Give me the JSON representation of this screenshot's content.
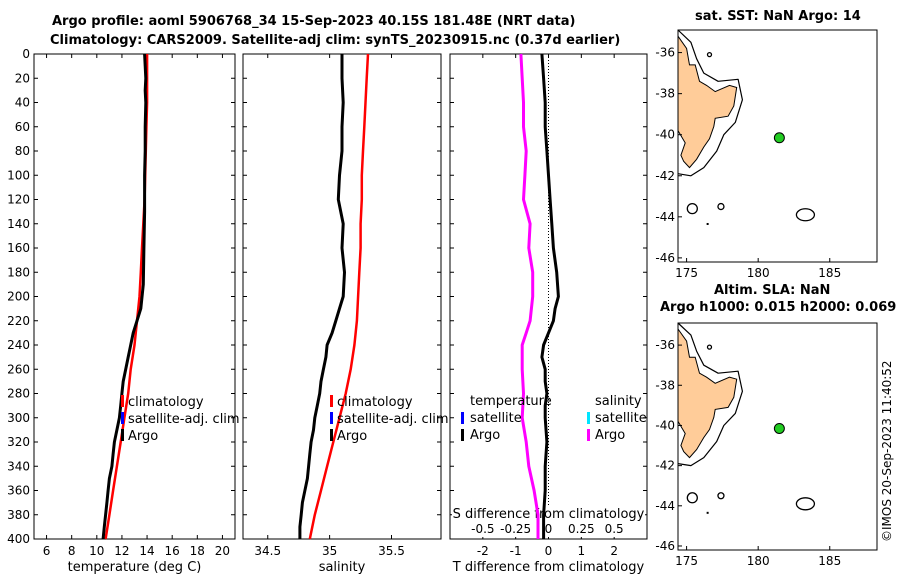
{
  "header": {
    "title_line1": "Argo profile: aoml 5906768_34 15-Sep-2023 40.15S 181.48E (NRT data)",
    "title_line2": "Climatology: CARS2009. Satellite-adj clim: synTS_20230915.nc (0.37d earlier)",
    "map1_title": "sat. SST: NaN Argo: 14",
    "map2_title_line1": "Altim. SLA: NaN",
    "map2_title_line2": "Argo h1000: 0.015 h2000: 0.069"
  },
  "footer": {
    "stamp": "©IMOS 20-Sep-2023 11:40:52"
  },
  "colors": {
    "argo": "#000000",
    "climatology": "#ff0000",
    "satellite": "#0000ff",
    "satellite_salinity": "#00e5ff",
    "salinity_diff": "#ff00ff",
    "land": "#ffcc99",
    "float_marker": "#22cc22"
  },
  "chart_data": [
    {
      "id": "temperature",
      "type": "line",
      "xlabel": "temperature (deg C)",
      "xlim": [
        5,
        21
      ],
      "xticks": [
        "6",
        "8",
        "10",
        "12",
        "14",
        "16",
        "18",
        "20"
      ],
      "ylim": [
        0,
        400
      ],
      "yticks": [
        "0",
        "20",
        "40",
        "60",
        "80",
        "100",
        "120",
        "140",
        "160",
        "180",
        "200",
        "220",
        "240",
        "260",
        "280",
        "300",
        "320",
        "340",
        "360",
        "380",
        "400"
      ],
      "series": [
        {
          "name": "Argo",
          "color": "#000000",
          "depth": [
            0,
            10,
            20,
            30,
            40,
            60,
            80,
            100,
            130,
            160,
            190,
            210,
            220,
            230,
            240,
            250,
            260,
            270,
            280,
            290,
            300,
            310,
            320,
            330,
            340,
            350,
            360,
            370,
            380,
            390,
            400
          ],
          "values": [
            13.8,
            13.85,
            13.9,
            13.85,
            13.9,
            13.85,
            13.85,
            13.8,
            13.8,
            13.75,
            13.7,
            13.5,
            13.2,
            12.9,
            12.7,
            12.5,
            12.3,
            12.1,
            12.0,
            11.9,
            11.8,
            11.6,
            11.4,
            11.3,
            11.2,
            11.0,
            10.9,
            10.8,
            10.7,
            10.6,
            10.5
          ]
        },
        {
          "name": "climatology",
          "color": "#ff0000",
          "depth": [
            0,
            20,
            40,
            60,
            80,
            100,
            120,
            140,
            160,
            180,
            200,
            220,
            240,
            260,
            280,
            300,
            320,
            340,
            360,
            380,
            400
          ],
          "values": [
            14.0,
            14.0,
            14.0,
            13.95,
            13.9,
            13.85,
            13.8,
            13.7,
            13.6,
            13.5,
            13.4,
            13.2,
            13.0,
            12.7,
            12.5,
            12.2,
            11.9,
            11.6,
            11.3,
            11.0,
            10.7
          ]
        },
        {
          "name": "satellite-adj. clim",
          "color": "#0000ff",
          "depth": [],
          "values": []
        }
      ],
      "legend": {
        "entries": [
          "climatology",
          "satellite-adj. clim",
          "Argo"
        ],
        "colors": [
          "#ff0000",
          "#0000ff",
          "#000000"
        ],
        "placement": "lower-middle"
      }
    },
    {
      "id": "salinity",
      "type": "line",
      "xlabel": "salinity",
      "xlim": [
        34.3,
        35.9
      ],
      "xticks": [
        "34.5",
        "35",
        "35.5"
      ],
      "ylim": [
        0,
        400
      ],
      "series": [
        {
          "name": "Argo",
          "color": "#000000",
          "depth": [
            0,
            20,
            40,
            60,
            80,
            100,
            120,
            140,
            160,
            180,
            200,
            210,
            220,
            230,
            240,
            250,
            260,
            270,
            280,
            290,
            300,
            310,
            320,
            330,
            340,
            350,
            360,
            370,
            380,
            390,
            400
          ],
          "values": [
            35.1,
            35.1,
            35.11,
            35.1,
            35.1,
            35.08,
            35.07,
            35.11,
            35.1,
            35.12,
            35.11,
            35.08,
            35.05,
            35.02,
            34.98,
            34.97,
            34.95,
            34.93,
            34.92,
            34.9,
            34.88,
            34.87,
            34.85,
            34.84,
            34.83,
            34.82,
            34.8,
            34.78,
            34.77,
            34.76,
            34.76
          ]
        },
        {
          "name": "climatology",
          "color": "#ff0000",
          "depth": [
            0,
            20,
            40,
            60,
            80,
            100,
            120,
            140,
            160,
            180,
            200,
            220,
            240,
            260,
            280,
            300,
            320,
            340,
            360,
            380,
            400
          ],
          "values": [
            35.31,
            35.3,
            35.29,
            35.28,
            35.27,
            35.26,
            35.26,
            35.25,
            35.25,
            35.24,
            35.23,
            35.22,
            35.2,
            35.17,
            35.13,
            35.08,
            35.03,
            34.98,
            34.93,
            34.88,
            34.84
          ]
        },
        {
          "name": "satellite-adj. clim",
          "color": "#0000ff",
          "depth": [],
          "values": []
        }
      ],
      "legend": {
        "entries": [
          "climatology",
          "satellite-adj. clim",
          "Argo"
        ],
        "colors": [
          "#ff0000",
          "#0000ff",
          "#000000"
        ],
        "placement": "lower-middle"
      }
    },
    {
      "id": "differences",
      "type": "line",
      "xlabel": "T difference from climatology",
      "xlim": [
        -3,
        3
      ],
      "xticks": [
        "-2",
        "-1",
        "0",
        "1",
        "2"
      ],
      "top_label": "S difference from climatology",
      "top_xlim": [
        -0.75,
        0.75
      ],
      "top_xticks": [
        "-0.5",
        "-0.25",
        "0",
        "0.25",
        "0.5"
      ],
      "ylim": [
        0,
        400
      ],
      "series": [
        {
          "name": "T Argo - clim",
          "color": "#000000",
          "axis": "T",
          "depth": [
            0,
            20,
            40,
            60,
            80,
            100,
            120,
            140,
            160,
            180,
            200,
            210,
            220,
            230,
            240,
            250,
            260,
            270,
            280,
            290,
            300,
            320,
            340,
            360,
            380,
            400
          ],
          "values": [
            -0.2,
            -0.15,
            -0.1,
            -0.1,
            -0.05,
            0.0,
            0.05,
            0.1,
            0.15,
            0.25,
            0.3,
            0.2,
            0.15,
            0.0,
            -0.15,
            -0.2,
            -0.1,
            -0.1,
            -0.05,
            -0.1,
            -0.1,
            -0.05,
            -0.1,
            -0.1,
            -0.15,
            -0.15
          ]
        },
        {
          "name": "S Argo - clim",
          "color": "#ff00ff",
          "axis": "S",
          "depth": [
            0,
            20,
            40,
            60,
            80,
            100,
            120,
            140,
            160,
            180,
            200,
            220,
            230,
            240,
            260,
            280,
            300,
            320,
            340,
            360,
            380,
            400
          ],
          "values": [
            -0.21,
            -0.2,
            -0.19,
            -0.19,
            -0.17,
            -0.18,
            -0.19,
            -0.14,
            -0.15,
            -0.12,
            -0.12,
            -0.14,
            -0.17,
            -0.2,
            -0.2,
            -0.19,
            -0.2,
            -0.17,
            -0.15,
            -0.11,
            -0.08,
            -0.08
          ]
        },
        {
          "name": "T satellite",
          "color": "#0000ff",
          "axis": "T",
          "depth": [],
          "values": []
        },
        {
          "name": "S satellite",
          "color": "#00e5ff",
          "axis": "S",
          "depth": [],
          "values": []
        }
      ],
      "legend_left": {
        "header": "temperature",
        "entries": [
          "satellite",
          "Argo"
        ],
        "colors": [
          "#0000ff",
          "#000000"
        ]
      },
      "legend_right": {
        "header": "salinity",
        "entries": [
          "satellite",
          "Argo"
        ],
        "colors": [
          "#00e5ff",
          "#ff00ff"
        ]
      }
    },
    {
      "id": "map_sst",
      "type": "scatter",
      "xlim": [
        174.4,
        188.3
      ],
      "xticks": [
        "175",
        "180",
        "185"
      ],
      "ylim": [
        -46.2,
        -34.9
      ],
      "yticks": [
        "-36",
        "-38",
        "-40",
        "-42",
        "-44",
        "-46"
      ],
      "float_position": {
        "lon": 181.48,
        "lat": -40.15
      }
    },
    {
      "id": "map_sla",
      "type": "scatter",
      "xlim": [
        174.4,
        188.3
      ],
      "xticks": [
        "175",
        "180",
        "185"
      ],
      "ylim": [
        -46.2,
        -34.9
      ],
      "yticks": [
        "-36",
        "-38",
        "-40",
        "-42",
        "-44",
        "-46"
      ],
      "float_position": {
        "lon": 181.48,
        "lat": -40.15
      }
    }
  ]
}
